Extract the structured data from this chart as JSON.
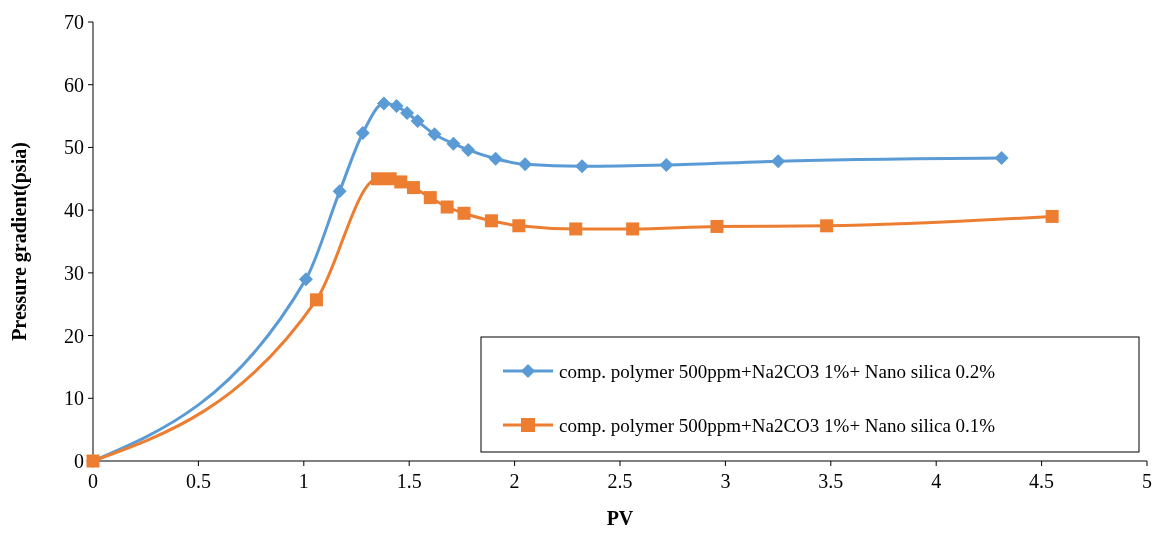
{
  "chart_data": {
    "type": "line",
    "xlabel": "PV",
    "ylabel": "Pressure gradient(psia)",
    "xlim": [
      0,
      5
    ],
    "ylim": [
      0,
      70
    ],
    "xticks": [
      0,
      0.5,
      1,
      1.5,
      2,
      2.5,
      3,
      3.5,
      4,
      4.5,
      5
    ],
    "yticks": [
      0,
      10,
      20,
      30,
      40,
      50,
      60,
      70
    ],
    "grid": false,
    "legend": "bottom right",
    "line_style": "solid",
    "series": [
      {
        "name": "comp. polymer 500ppm+Na2CO3 1%+ Nano silica 0.2%",
        "color": "#5b9bd5",
        "marker": "diamond",
        "x": [
          0,
          1.01,
          1.17,
          1.28,
          1.38,
          1.44,
          1.49,
          1.54,
          1.62,
          1.71,
          1.78,
          1.91,
          2.05,
          2.32,
          2.72,
          3.25,
          4.31
        ],
        "values": [
          0,
          29,
          43,
          52.3,
          57,
          56.6,
          55.5,
          54.2,
          52.1,
          50.6,
          49.6,
          48.2,
          47.3,
          47,
          47.2,
          47.8,
          48.3
        ]
      },
      {
        "name": "comp. polymer 500ppm+Na2CO3 1%+ Nano silica 0.1%",
        "color": "#ed7d31",
        "marker": "square",
        "x": [
          0,
          1.06,
          1.35,
          1.41,
          1.46,
          1.52,
          1.6,
          1.68,
          1.76,
          1.89,
          2.02,
          2.29,
          2.56,
          2.96,
          3.48,
          4.55
        ],
        "values": [
          0,
          25.7,
          45,
          45,
          44.5,
          43.6,
          42,
          40.5,
          39.5,
          38.3,
          37.5,
          37,
          37,
          37.4,
          37.5,
          39
        ]
      }
    ]
  }
}
